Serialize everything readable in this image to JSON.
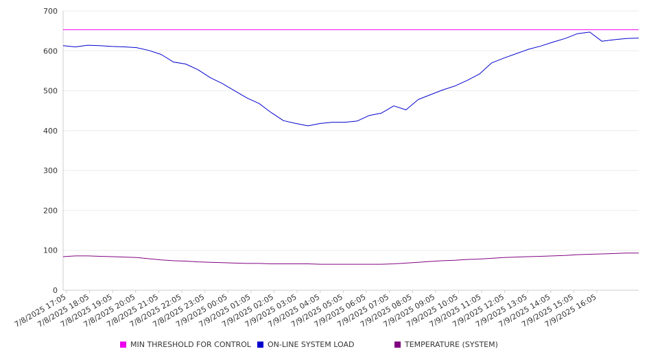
{
  "chart_data": {
    "type": "line",
    "title": "",
    "xlabel": "",
    "ylabel": "",
    "ylim": [
      0,
      700
    ],
    "yticks": [
      0,
      100,
      200,
      300,
      400,
      500,
      600,
      700
    ],
    "grid": true,
    "legend_position": "bottom",
    "x_tick_labels": [
      "7/8/2025 17:05",
      "7/8/2025 18:05",
      "7/8/2025 19:05",
      "7/8/2025 20:05",
      "7/8/2025 21:05",
      "7/8/2025 22:05",
      "7/8/2025 23:05",
      "7/9/2025 00:05",
      "7/9/2025 01:05",
      "7/9/2025 02:05",
      "7/9/2025 03:05",
      "7/9/2025 04:05",
      "7/9/2025 05:05",
      "7/9/2025 06:05",
      "7/9/2025 07:05",
      "7/9/2025 08:05",
      "7/9/2025 09:05",
      "7/9/2025 10:05",
      "7/9/2025 11:05",
      "7/9/2025 12:05",
      "7/9/2025 13:05",
      "7/9/2025 14:05",
      "7/9/2025 15:05",
      "7/9/2025 16:05"
    ],
    "x": [
      "7/8/2025 17:05",
      "7/8/2025 17:35",
      "7/8/2025 18:05",
      "7/8/2025 18:35",
      "7/8/2025 19:05",
      "7/8/2025 19:35",
      "7/8/2025 20:05",
      "7/8/2025 20:35",
      "7/8/2025 21:05",
      "7/8/2025 21:35",
      "7/8/2025 22:05",
      "7/8/2025 22:35",
      "7/8/2025 23:05",
      "7/8/2025 23:35",
      "7/9/2025 00:05",
      "7/9/2025 00:35",
      "7/9/2025 01:05",
      "7/9/2025 01:35",
      "7/9/2025 02:05",
      "7/9/2025 02:35",
      "7/9/2025 03:05",
      "7/9/2025 03:35",
      "7/9/2025 04:05",
      "7/9/2025 04:35",
      "7/9/2025 05:05",
      "7/9/2025 05:35",
      "7/9/2025 06:05",
      "7/9/2025 06:35",
      "7/9/2025 07:05",
      "7/9/2025 07:35",
      "7/9/2025 08:05",
      "7/9/2025 08:35",
      "7/9/2025 09:05",
      "7/9/2025 09:35",
      "7/9/2025 10:05",
      "7/9/2025 10:35",
      "7/9/2025 11:05",
      "7/9/2025 11:35",
      "7/9/2025 12:05",
      "7/9/2025 12:35",
      "7/9/2025 13:05",
      "7/9/2025 13:35",
      "7/9/2025 14:05",
      "7/9/2025 14:35",
      "7/9/2025 15:05",
      "7/9/2025 15:35",
      "7/9/2025 16:05",
      "7/9/2025 16:35"
    ],
    "series": [
      {
        "name": "MIN THRESHOLD FOR CONTROL",
        "color": "#ee00ee",
        "values": [
          653,
          653,
          653,
          653,
          653,
          653,
          653,
          653,
          653,
          653,
          653,
          653,
          653,
          653,
          653,
          653,
          653,
          653,
          653,
          653,
          653,
          653,
          653,
          653,
          653,
          653,
          653,
          653,
          653,
          653,
          653,
          653,
          653,
          653,
          653,
          653,
          653,
          653,
          653,
          653,
          653,
          653,
          653,
          653,
          653,
          653,
          653,
          653
        ]
      },
      {
        "name": "ON-LINE SYSTEM LOAD",
        "color": "#0000cc",
        "values": [
          613,
          610,
          614,
          613,
          611,
          610,
          608,
          601,
          591,
          572,
          567,
          553,
          533,
          518,
          500,
          482,
          468,
          445,
          425,
          418,
          412,
          418,
          421,
          421,
          424,
          438,
          444,
          462,
          452,
          478,
          490,
          502,
          512,
          526,
          542,
          570,
          582,
          593,
          604,
          612,
          622,
          631,
          643,
          647,
          624,
          628,
          631,
          632
        ]
      },
      {
        "name": "TEMPERATURE (SYSTEM)",
        "color": "#800080",
        "values": [
          84,
          86,
          86,
          85,
          84,
          83,
          82,
          79,
          76,
          74,
          73,
          71,
          70,
          69,
          68,
          67,
          67,
          66,
          66,
          66,
          66,
          65,
          65,
          65,
          65,
          65,
          65,
          66,
          68,
          70,
          72,
          74,
          75,
          77,
          78,
          80,
          82,
          83,
          84,
          85,
          86,
          87,
          89,
          90,
          91,
          92,
          93,
          93
        ]
      }
    ]
  }
}
